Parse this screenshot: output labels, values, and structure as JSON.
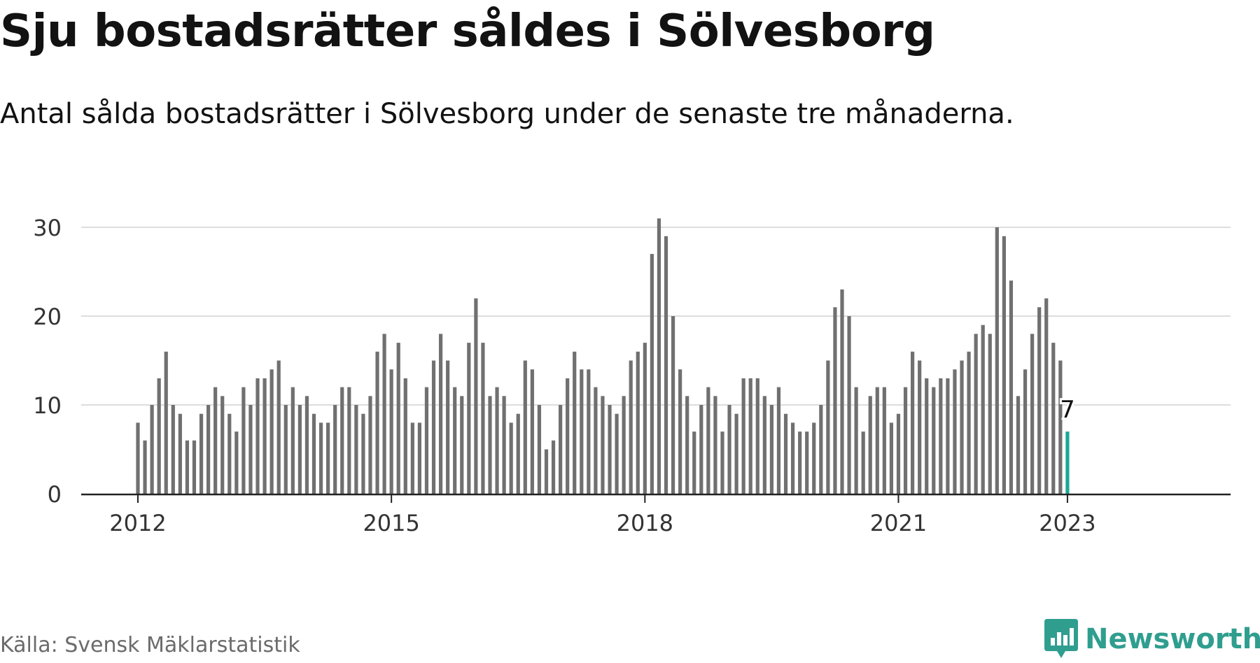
{
  "title": "Sju bostadsrätter såldes i Sölvesborg",
  "subtitle": "Antal sålda bostadsrätter i Sölvesborg under de senaste tre månaderna.",
  "source": "Källa: Svensk Mäklarstatistik",
  "brand": {
    "name": "Newsworthy",
    "color": "#2f9e8f",
    "icon": "newsworthy-logo-icon"
  },
  "colors": {
    "bar": "#707070",
    "highlight": "#1aa895",
    "grid": "#dddddd",
    "axis": "#222222"
  },
  "chart_data": {
    "type": "bar",
    "title": "Sju bostadsrätter såldes i Sölvesborg",
    "subtitle": "Antal sålda bostadsrätter i Sölvesborg under de senaste tre månaderna.",
    "xlabel": "",
    "ylabel": "",
    "ylim": [
      0,
      30
    ],
    "yticks": [
      0,
      10,
      20,
      30
    ],
    "xticks": [
      "2012",
      "2015",
      "2018",
      "2021",
      "2023"
    ],
    "grid": true,
    "start": "2012-01",
    "frequency": "monthly",
    "values": [
      8,
      6,
      10,
      13,
      16,
      10,
      9,
      6,
      6,
      9,
      10,
      12,
      11,
      9,
      7,
      12,
      10,
      13,
      13,
      14,
      15,
      10,
      12,
      10,
      11,
      9,
      8,
      8,
      10,
      12,
      12,
      10,
      9,
      11,
      16,
      18,
      14,
      17,
      13,
      8,
      8,
      12,
      15,
      18,
      15,
      12,
      11,
      17,
      22,
      17,
      11,
      12,
      11,
      8,
      9,
      15,
      14,
      10,
      5,
      6,
      10,
      13,
      16,
      14,
      14,
      12,
      11,
      10,
      9,
      11,
      15,
      16,
      17,
      27,
      31,
      29,
      20,
      14,
      11,
      7,
      10,
      12,
      11,
      7,
      10,
      9,
      13,
      13,
      13,
      11,
      10,
      12,
      9,
      8,
      7,
      7,
      8,
      10,
      15,
      21,
      23,
      20,
      12,
      7,
      11,
      12,
      12,
      8,
      9,
      12,
      16,
      15,
      13,
      12,
      13,
      13,
      14,
      15,
      16,
      18,
      19,
      18,
      30,
      29,
      24,
      11,
      14,
      18,
      21,
      22,
      17,
      15,
      7
    ],
    "highlight": {
      "label": "7",
      "value": 7
    }
  }
}
